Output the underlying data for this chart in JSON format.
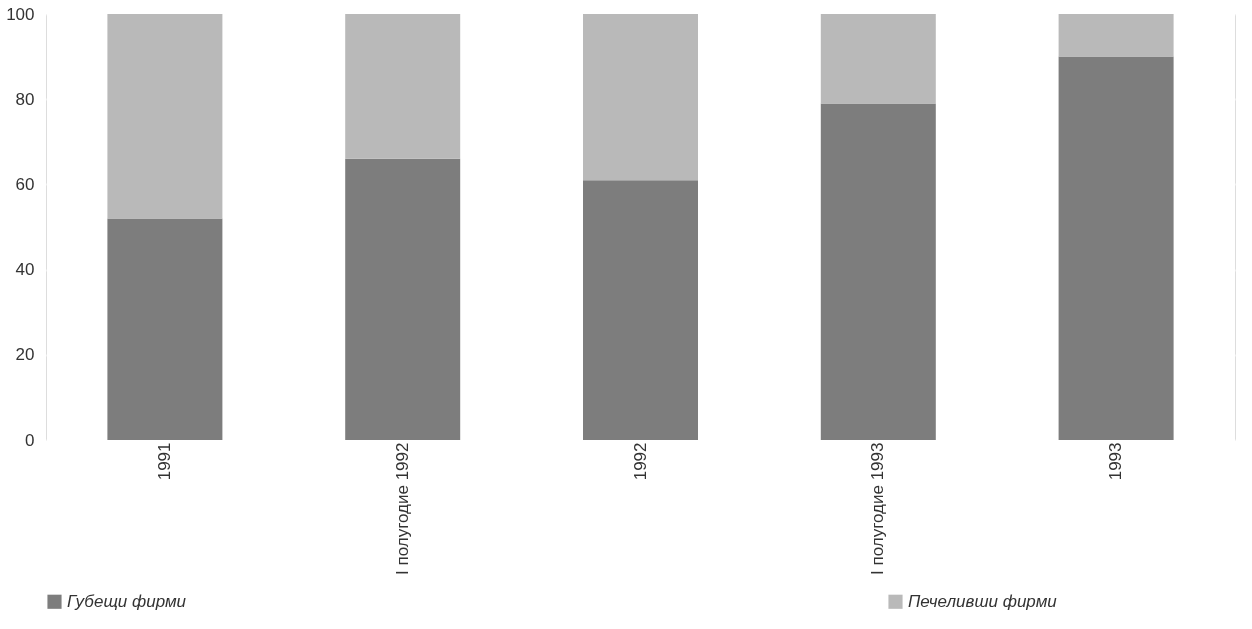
{
  "chart_data": {
    "type": "bar",
    "stacked": true,
    "categories": [
      "1991",
      "I полугодие 1992",
      "1992",
      "I полугодие 1993",
      "1993"
    ],
    "series": [
      {
        "name": "Губещи фирми",
        "color": "#7d7d7d",
        "values": [
          52,
          66,
          61,
          79,
          90
        ]
      },
      {
        "name": "Печеливши фирми",
        "color": "#b9b9b9",
        "values": [
          48,
          34,
          39,
          21,
          10
        ]
      }
    ],
    "ylim": [
      0,
      100
    ],
    "yticks": [
      0,
      20,
      40,
      60,
      80,
      100
    ],
    "grid": true,
    "legend": "bottom"
  }
}
